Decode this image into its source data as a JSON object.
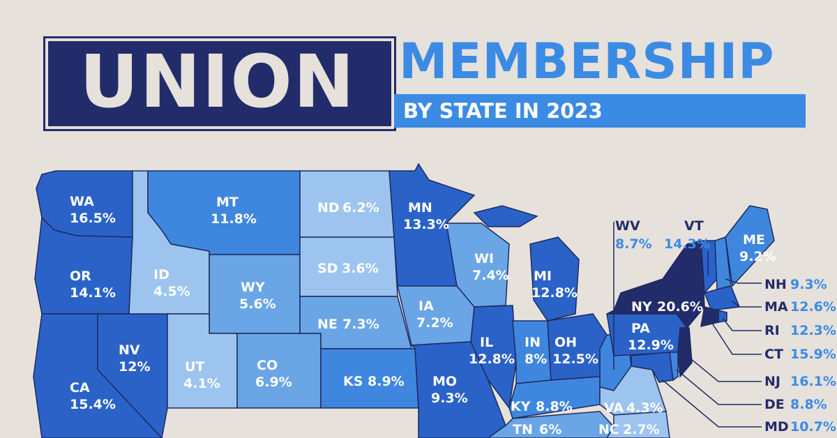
{
  "title": {
    "word1": "UNION",
    "word2": "MEMBERSHIP",
    "subtitle": "BY STATE IN 2023"
  },
  "colors": {
    "background": "#e6e1db",
    "darkest": "#232c6a",
    "darker": "#2a3a8c",
    "dark": "#2a62c8",
    "medium": "#3f86df",
    "light": "#6aa5e6",
    "lighter": "#9cc4ef"
  },
  "states": {
    "WA": {
      "code": "WA",
      "value": "16.5%"
    },
    "OR": {
      "code": "OR",
      "value": "14.1%"
    },
    "CA": {
      "code": "CA",
      "value": "15.4%"
    },
    "NV": {
      "code": "NV",
      "value": "12%"
    },
    "ID": {
      "code": "ID",
      "value": "4.5%"
    },
    "MT": {
      "code": "MT",
      "value": "11.8%"
    },
    "WY": {
      "code": "WY",
      "value": "5.6%"
    },
    "UT": {
      "code": "UT",
      "value": "4.1%"
    },
    "CO": {
      "code": "CO",
      "value": "6.9%"
    },
    "ND": {
      "code": "ND",
      "value": "6.2%"
    },
    "SD": {
      "code": "SD",
      "value": "3.6%"
    },
    "NE": {
      "code": "NE",
      "value": "7.3%"
    },
    "KS": {
      "code": "KS",
      "value": "8.9%"
    },
    "MN": {
      "code": "MN",
      "value": "13.3%"
    },
    "IA": {
      "code": "IA",
      "value": "7.2%"
    },
    "MO": {
      "code": "MO",
      "value": "9.3%"
    },
    "WI": {
      "code": "WI",
      "value": "7.4%"
    },
    "IL": {
      "code": "IL",
      "value": "12.8%"
    },
    "MI": {
      "code": "MI",
      "value": "12.8%"
    },
    "IN": {
      "code": "IN",
      "value": "8%"
    },
    "OH": {
      "code": "OH",
      "value": "12.5%"
    },
    "KY": {
      "code": "KY",
      "value": "8.8%"
    },
    "TN": {
      "code": "TN",
      "value": "6%"
    },
    "VA": {
      "code": "VA",
      "value": "4.3%"
    },
    "NC": {
      "code": "NC",
      "value": "2.7%"
    },
    "PA": {
      "code": "PA",
      "value": "12.9%"
    },
    "NY": {
      "code": "NY",
      "value": "20.6%"
    },
    "ME": {
      "code": "ME",
      "value": "9.2%"
    },
    "WV": {
      "code": "WV",
      "value": "8.7%"
    },
    "VT": {
      "code": "VT",
      "value": "14.3%"
    },
    "NH": {
      "code": "NH",
      "value": "9.3%"
    },
    "MA": {
      "code": "MA",
      "value": "12.6%"
    },
    "RI": {
      "code": "RI",
      "value": "12.3%"
    },
    "CT": {
      "code": "CT",
      "value": "15.9%"
    },
    "NJ": {
      "code": "NJ",
      "value": "16.1%"
    },
    "DE": {
      "code": "DE",
      "value": "8.8%"
    },
    "MD": {
      "code": "MD",
      "value": "10.7%"
    }
  }
}
